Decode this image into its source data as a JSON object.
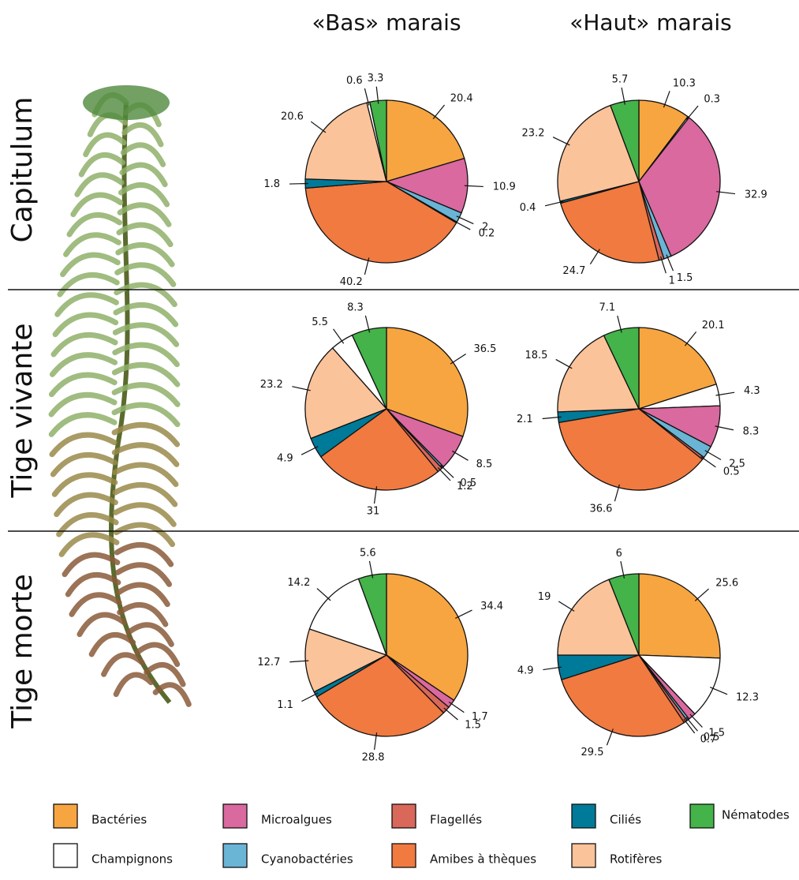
{
  "column_titles": [
    "«Bas» marais",
    "«Haut» marais"
  ],
  "row_titles": [
    "Capitulum",
    "Tige vivante",
    "Tige morte"
  ],
  "legend": {
    "categories": [
      "Bactéries",
      "Microalgues",
      "Flagellés",
      "Ciliés",
      "Nématodes",
      "Champignons",
      "Cyanobactéries",
      "Amibes à thèques",
      "Rotifères"
    ],
    "colors": [
      "#f7a540",
      "#d9699f",
      "#d9675a",
      "#007a99",
      "#44b349",
      "#ffffff",
      "#6ab4d6",
      "#f07a40",
      "#fbc39a"
    ]
  },
  "chart_data": [
    {
      "type": "pie",
      "values": [
        20.4,
        10.9,
        0.2,
        1.8,
        3.3,
        0.6,
        2,
        40.2,
        20.6
      ]
    },
    {
      "type": "pie",
      "values": [
        10.3,
        32.9,
        1,
        0.4,
        5.7,
        0.3,
        1.5,
        24.7,
        23.2
      ]
    },
    {
      "type": "pie",
      "values": [
        36.5,
        8.5,
        1.2,
        4.9,
        8.3,
        5.5,
        0.5,
        31,
        23.2
      ]
    },
    {
      "type": "pie",
      "values": [
        20.1,
        8.3,
        0.5,
        2.1,
        7.1,
        4.3,
        2.5,
        36.6,
        18.5
      ]
    },
    {
      "type": "pie",
      "values": [
        34.4,
        1.7,
        1.5,
        1.1,
        5.6,
        14.2,
        null,
        28.8,
        12.7
      ]
    },
    {
      "type": "pie",
      "values": [
        25.6,
        1.5,
        0.7,
        4.9,
        6,
        12.3,
        0.5,
        29.5,
        19
      ]
    }
  ]
}
